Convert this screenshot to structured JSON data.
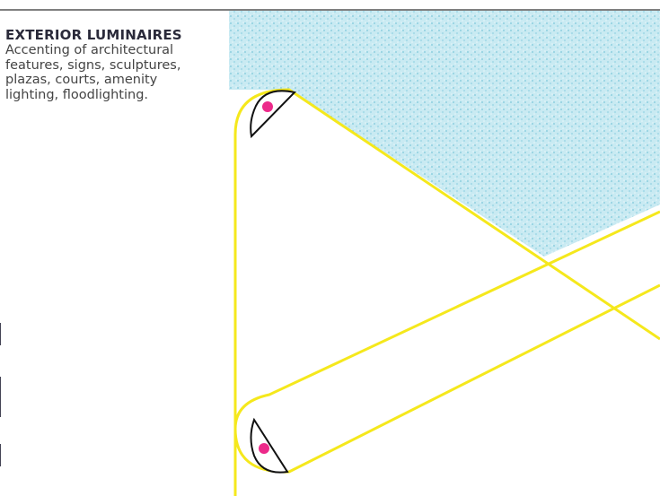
{
  "heading": "EXTERIOR LUMINAIRES",
  "body": [
    "Accenting of architectural",
    "features, signs, sculptures,",
    "plazas, courts, amenity",
    "lighting, floodlighting."
  ]
}
